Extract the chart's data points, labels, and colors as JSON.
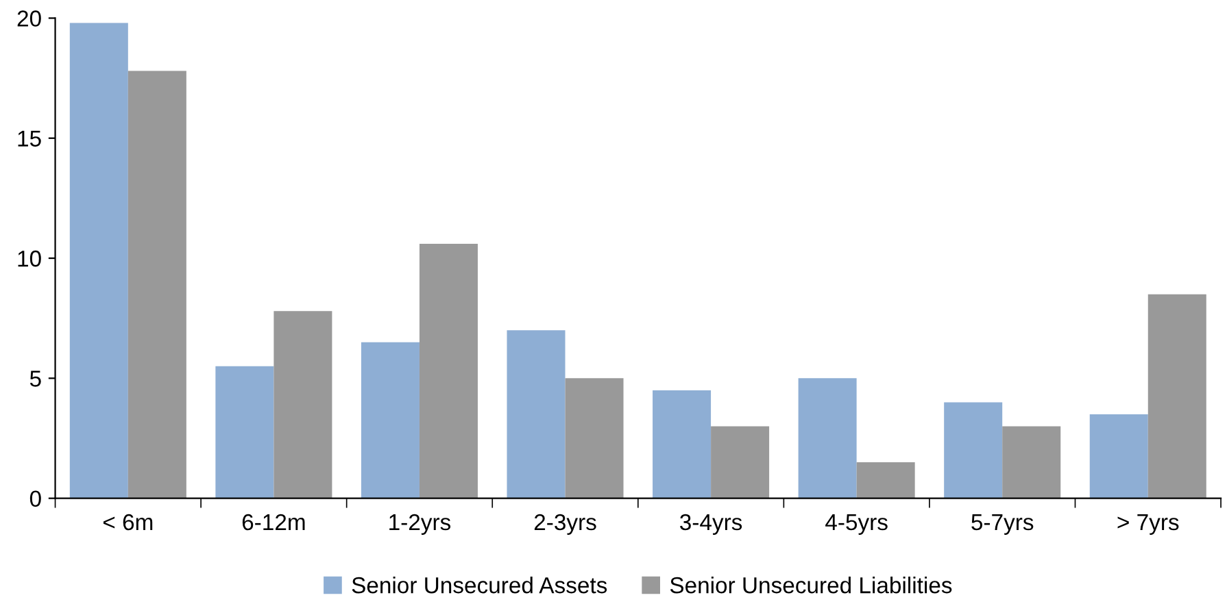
{
  "chart_data": {
    "type": "bar",
    "categories": [
      "< 6m",
      "6-12m",
      "1-2yrs",
      "2-3yrs",
      "3-4yrs",
      "4-5yrs",
      "5-7yrs",
      "> 7yrs"
    ],
    "series": [
      {
        "name": "Senior Unsecured Assets",
        "color": "#8eaed4",
        "values": [
          19.8,
          5.5,
          6.5,
          7.0,
          4.5,
          5.0,
          4.0,
          3.5
        ]
      },
      {
        "name": "Senior Unsecured Liabilities",
        "color": "#999999",
        "values": [
          17.8,
          7.8,
          10.6,
          5.0,
          3.0,
          1.5,
          3.0,
          8.5
        ]
      }
    ],
    "ylim": [
      0,
      20
    ],
    "yticks": [
      0,
      5,
      10,
      15,
      20
    ],
    "grid": false,
    "legend": "bottom"
  }
}
